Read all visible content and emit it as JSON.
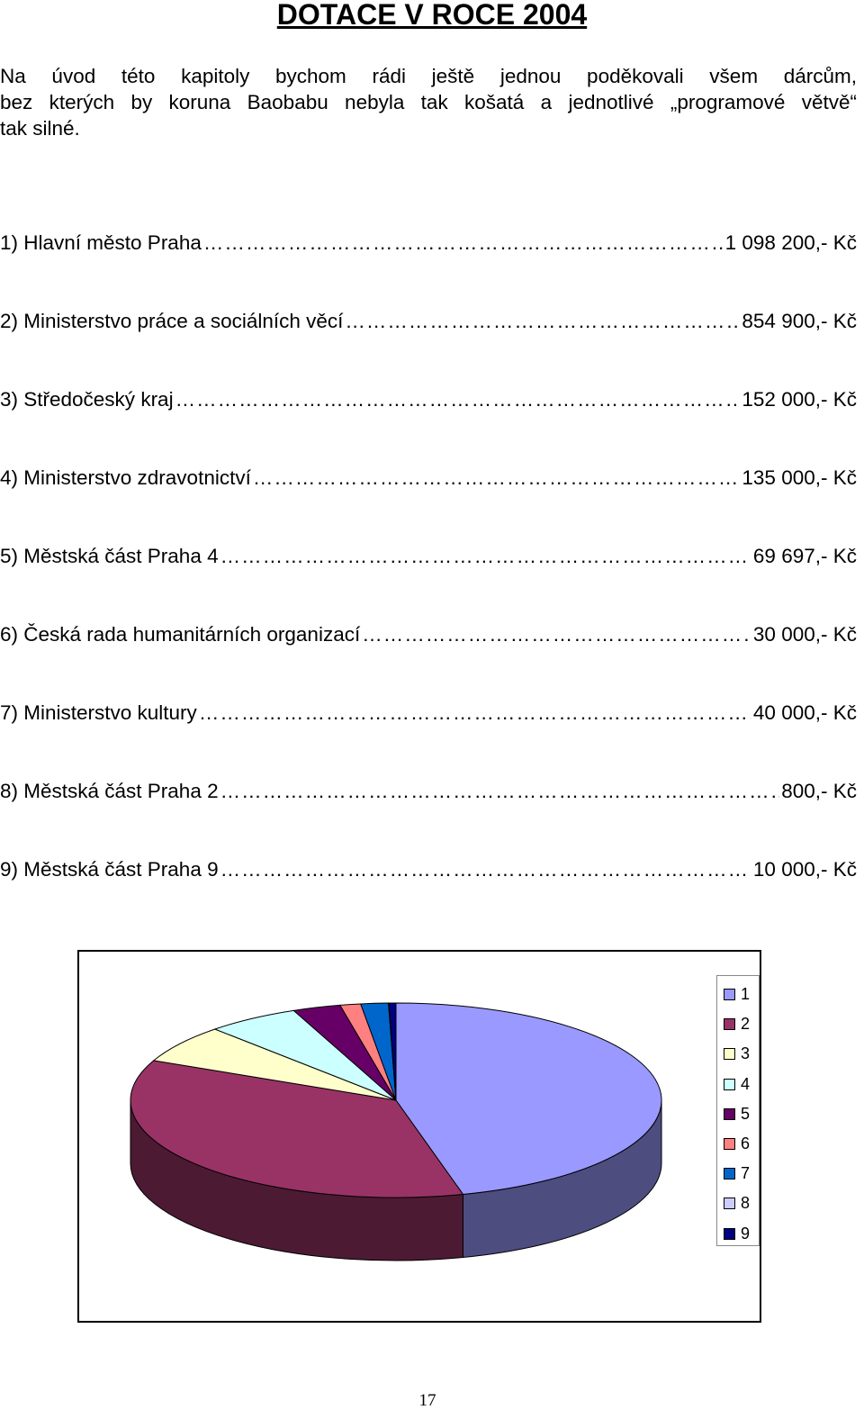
{
  "document": {
    "title": "DOTACE V ROCE 2004",
    "intro_lines": [
      "Na úvod této kapitoly bychom rádi ještě jednou poděkovali všem dárcům,",
      "bez kterých by koruna Baobabu nebyla tak košatá a jednotlivé „programové větvě“",
      "tak silné."
    ],
    "dots": "………………………………………………………………………………………",
    "entries": [
      {
        "label": "1) Hlavní město Praha",
        "amount": "1 098 200,- Kč"
      },
      {
        "label": "2) Ministerstvo práce a sociálních věcí",
        "amount": "854 900,- Kč"
      },
      {
        "label": "3) Středočeský kraj",
        "amount": "152 000,- Kč"
      },
      {
        "label": "4) Ministerstvo zdravotnictví",
        "amount": "135 000,- Kč"
      },
      {
        "label": "5) Městská část Praha 4",
        "amount": "69 697,- Kč"
      },
      {
        "label": "6) Česká rada humanitárních organizací",
        "amount": "30 000,- Kč"
      },
      {
        "label": "7) Ministerstvo kultury",
        "amount": "40 000,- Kč"
      },
      {
        "label": "8) Městská část Praha 2",
        "amount": "800,- Kč"
      },
      {
        "label": "9) Městská část  Praha 9",
        "amount": "10 000,- Kč"
      }
    ],
    "page_number": "17"
  },
  "chart_data": {
    "type": "pie",
    "style": "3d",
    "categories": [
      "1",
      "2",
      "3",
      "4",
      "5",
      "6",
      "7",
      "8",
      "9"
    ],
    "values": [
      1098200,
      854900,
      152000,
      135000,
      69697,
      30000,
      40000,
      800,
      10000
    ],
    "colors": [
      "#9999ff",
      "#993366",
      "#ffffcc",
      "#ccffff",
      "#660066",
      "#ff8080",
      "#0066cc",
      "#ccccff",
      "#000080"
    ],
    "legend_position": "right"
  }
}
